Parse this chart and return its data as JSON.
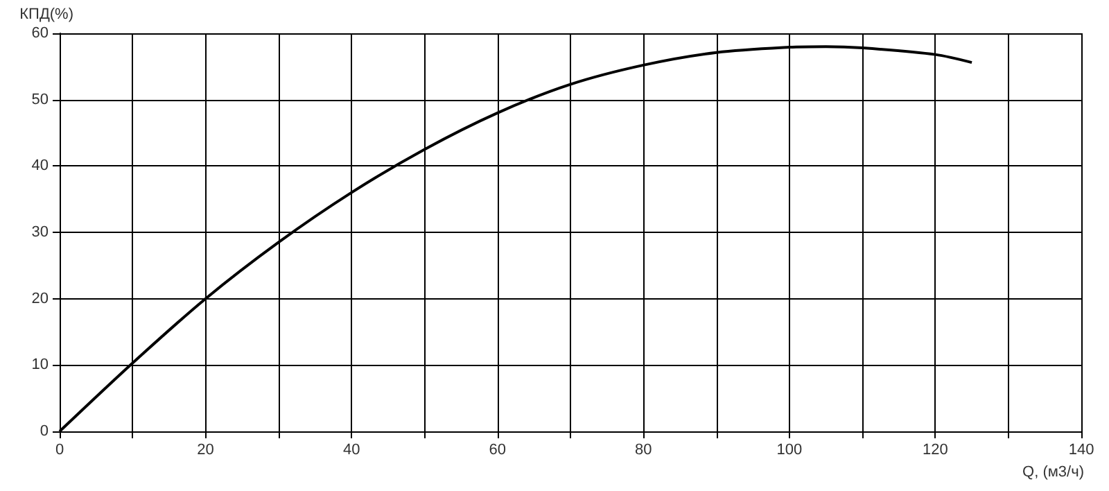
{
  "chart_data": {
    "type": "line",
    "xlabel": "Q, (м3/ч)",
    "ylabel": "КПД(%)",
    "x": [
      0,
      10,
      20,
      30,
      40,
      50,
      60,
      70,
      80,
      90,
      100,
      105,
      110,
      120,
      125
    ],
    "series": [
      {
        "color": "#000000",
        "values": [
          0,
          10.3,
          20,
          28.5,
          36,
          42.5,
          48,
          52.3,
          55.2,
          57.1,
          57.9,
          58,
          57.8,
          56.8,
          55.6
        ]
      }
    ],
    "xlim": [
      0,
      140
    ],
    "xticks": [
      0,
      {
        "value": 10,
        "label": null
      },
      20,
      {
        "value": 30,
        "label": null
      },
      40,
      {
        "value": 50,
        "label": null
      },
      60,
      {
        "value": 70,
        "label": null
      },
      80,
      {
        "value": 90,
        "label": null
      },
      100,
      {
        "value": 110,
        "label": null
      },
      120,
      {
        "value": 130,
        "label": null
      },
      140
    ],
    "ylim": [
      0,
      60
    ],
    "yticks": [
      0,
      10,
      20,
      30,
      40,
      50,
      60
    ],
    "grid": true,
    "marker": "none",
    "line_style": "solid"
  }
}
